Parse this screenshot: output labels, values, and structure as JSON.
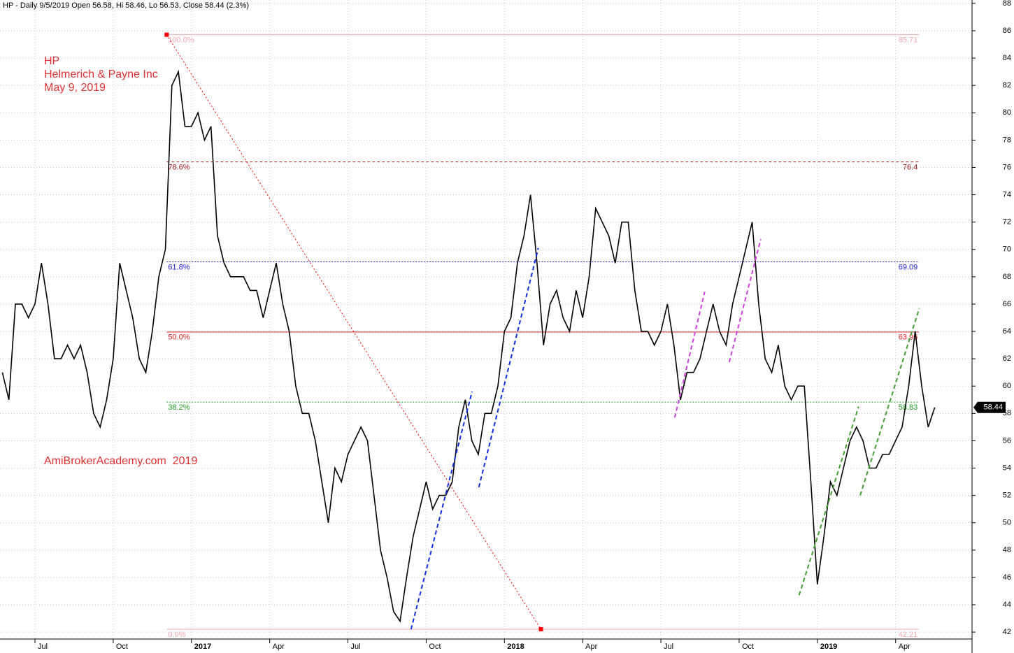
{
  "header": "HP - Daily 9/5/2019 Open 56.58, Hi 58.46, Lo 56.53, Close 58.44 (2.3%)",
  "chart_data": {
    "type": "line",
    "notes": [
      "HP",
      "Helmerich & Payne Inc",
      "May 9, 2019"
    ],
    "watermark": "AmiBrokerAcademy.com  2019",
    "x": [
      -1.25,
      -1,
      -0.75,
      -0.5,
      -0.25,
      0,
      0.25,
      0.5,
      0.75,
      1,
      1.25,
      1.5,
      1.75,
      2,
      2.25,
      2.5,
      2.75,
      3,
      3.25,
      3.5,
      3.75,
      4,
      4.25,
      4.5,
      4.75,
      5,
      5.25,
      5.5,
      5.75,
      6,
      6.25,
      6.5,
      6.75,
      7,
      7.25,
      7.5,
      7.75,
      8,
      8.25,
      8.5,
      8.75,
      9,
      9.25,
      9.5,
      9.75,
      10,
      10.25,
      10.5,
      10.75,
      11,
      11.25,
      11.5,
      11.75,
      12,
      12.25,
      12.5,
      12.75,
      13,
      13.25,
      13.5,
      13.75,
      14,
      14.25,
      14.5,
      14.75,
      15,
      15.25,
      15.5,
      15.75,
      16,
      16.25,
      16.5,
      16.75,
      17,
      17.25,
      17.5,
      17.75,
      18,
      18.25,
      18.5,
      18.75,
      19,
      19.25,
      19.5,
      19.75,
      20,
      20.25,
      20.5,
      20.75,
      21,
      21.25,
      21.5,
      21.75,
      22,
      22.25,
      22.5,
      22.75,
      23,
      23.25,
      23.5,
      23.75,
      24,
      24.25,
      24.5,
      24.75,
      25,
      25.25,
      25.5,
      25.75,
      26,
      26.25,
      26.5,
      26.75,
      27,
      27.25,
      27.5,
      27.75,
      28,
      28.25,
      28.5,
      28.75,
      29,
      29.25,
      29.5,
      29.75,
      30,
      30.25,
      30.5,
      30.75,
      31,
      31.25,
      31.5,
      31.75,
      32,
      32.25,
      32.5,
      32.75,
      33,
      33.25,
      33.5,
      33.75,
      34,
      34.25,
      34.5
    ],
    "values": [
      61,
      59,
      66,
      66,
      65,
      66,
      69,
      66,
      62,
      62,
      63,
      62,
      63,
      61,
      58,
      57,
      59,
      62,
      69,
      67,
      65,
      62,
      61,
      64,
      68,
      70,
      82,
      83,
      79,
      79,
      80,
      78,
      79,
      71,
      69,
      68,
      68,
      68,
      67,
      67,
      65,
      67,
      69,
      66,
      64,
      60,
      58,
      58,
      56,
      53,
      50,
      54,
      53,
      55,
      56,
      57,
      56,
      52,
      48,
      46,
      43.5,
      42.8,
      46,
      49,
      51,
      53,
      51,
      52,
      52,
      53,
      57,
      59,
      56,
      55,
      58,
      58,
      60,
      64,
      65,
      69,
      71,
      74,
      69,
      63,
      66,
      67,
      65,
      64,
      67,
      65,
      68,
      73,
      72,
      71,
      69,
      72,
      72,
      67,
      64,
      64,
      63,
      64,
      66,
      63,
      59,
      61,
      61,
      62,
      64,
      66,
      64,
      63,
      66,
      68,
      70,
      72,
      66,
      62,
      61,
      63,
      60,
      59,
      60,
      60,
      53,
      45.5,
      49,
      53,
      52,
      54,
      56,
      57,
      56,
      54,
      54,
      55,
      55,
      56,
      57,
      60,
      64,
      60,
      57,
      58.44
    ],
    "color": "#000000",
    "last_value": 58.44,
    "xlim": [
      -1.34,
      35.93
    ],
    "xticks": [
      {
        "value": 0,
        "label": "Jul"
      },
      {
        "value": 3,
        "label": "Oct"
      },
      {
        "value": 6,
        "label": "2017"
      },
      {
        "value": 9,
        "label": "Apr"
      },
      {
        "value": 12,
        "label": "Jul"
      },
      {
        "value": 15,
        "label": "Oct"
      },
      {
        "value": 18,
        "label": "2018"
      },
      {
        "value": 21,
        "label": "Apr"
      },
      {
        "value": 24,
        "label": "Jul"
      },
      {
        "value": 27,
        "label": "Oct"
      },
      {
        "value": 30,
        "label": "2019"
      },
      {
        "value": 33,
        "label": "Apr"
      }
    ],
    "ylim": [
      40.47,
      88.25
    ],
    "yticks": [
      42,
      44,
      46,
      48,
      50,
      52,
      54,
      56,
      58,
      60,
      62,
      64,
      66,
      68,
      70,
      72,
      74,
      76,
      78,
      80,
      82,
      84,
      86,
      88
    ],
    "grid": true,
    "fibonacci": {
      "start": 5.05,
      "end": 33.9,
      "levels": [
        {
          "label": "100.0%",
          "value": 85.71,
          "color": "#f4a6b4",
          "dash": "solid"
        },
        {
          "label": "78.6%",
          "value": 76.4,
          "color": "#a01818",
          "dash": "dashed"
        },
        {
          "label": "61.8%",
          "value": 69.09,
          "color": "#1a1ad0",
          "dash": "dotted"
        },
        {
          "label": "50.0%",
          "value": 63.96,
          "color": "#e02020",
          "dash": "solid"
        },
        {
          "label": "38.2%",
          "value": 58.83,
          "color": "#20a020",
          "dash": "dotted"
        },
        {
          "label": "0.0%",
          "value": 42.21,
          "color": "#f4a6b4",
          "dash": "solid"
        }
      ]
    },
    "swing_line": {
      "x": [
        5.05,
        19.4
      ],
      "y": [
        85.71,
        42.21
      ],
      "color": "#ff0000"
    },
    "trend_lines": [
      {
        "x": [
          14.42,
          16.76
        ],
        "y": [
          42.2,
          59.6
        ],
        "color": "#1030e0"
      },
      {
        "x": [
          17.02,
          19.3
        ],
        "y": [
          52.6,
          70.1
        ],
        "color": "#1030e0"
      },
      {
        "x": [
          24.53,
          25.68
        ],
        "y": [
          57.7,
          66.9
        ],
        "color": "#d040e0"
      },
      {
        "x": [
          26.62,
          27.83
        ],
        "y": [
          61.75,
          70.75
        ],
        "color": "#d040e0"
      },
      {
        "x": [
          29.3,
          31.58
        ],
        "y": [
          44.7,
          58.5
        ],
        "color": "#40a030"
      },
      {
        "x": [
          31.64,
          33.91
        ],
        "y": [
          52.0,
          65.7
        ],
        "color": "#40a030"
      }
    ]
  }
}
